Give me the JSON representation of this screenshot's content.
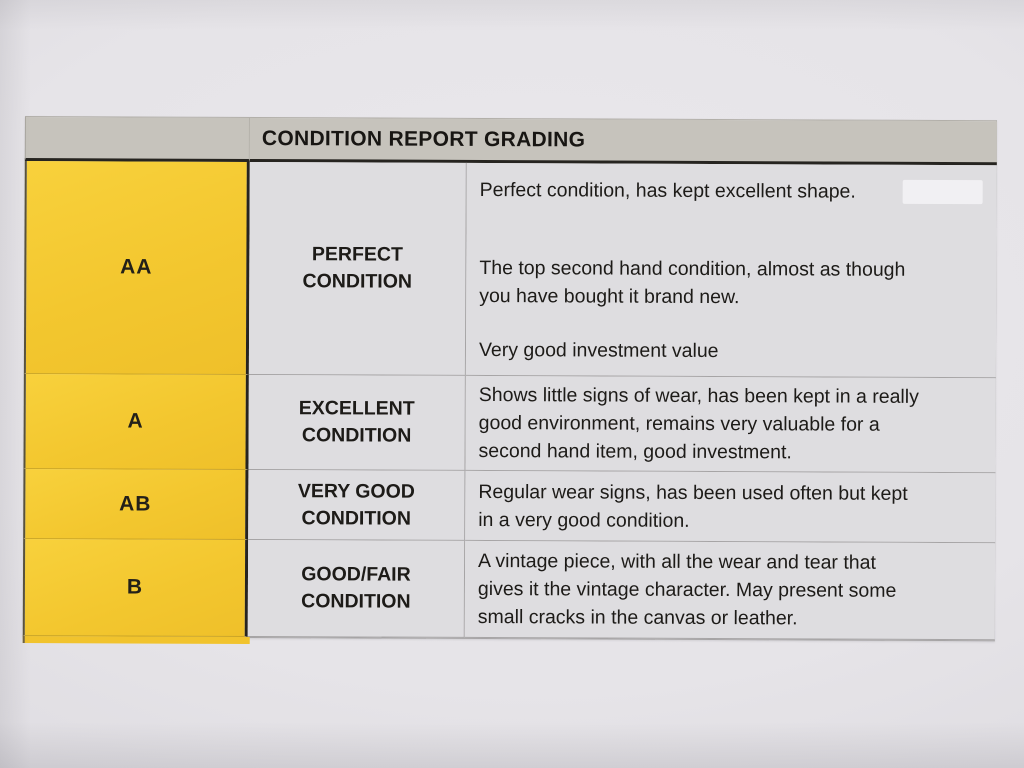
{
  "table": {
    "header": {
      "title": "CONDITION REPORT GRADING"
    },
    "colors": {
      "grade_cell_yellow": "#f3c72f",
      "header_bar_gray": "#c6c3bc",
      "cell_background": "#dedde0",
      "text": "#1d1b18",
      "heavy_border": "#262420"
    },
    "rows": [
      {
        "grade": "AA",
        "name": "PERFECT\nCONDITION",
        "paragraphs": [
          "Perfect condition, has kept excellent shape.",
          "The top second hand condition, almost as though\nyou have bought it brand new.",
          "Very good investment value"
        ]
      },
      {
        "grade": "A",
        "name": "EXCELLENT\nCONDITION",
        "paragraphs": [
          "Shows little signs of wear, has been kept in a really\ngood environment, remains very valuable for a\nsecond hand item, good investment."
        ]
      },
      {
        "grade": "AB",
        "name": "VERY GOOD\nCONDITION",
        "paragraphs": [
          "Regular wear signs, has been used often but kept\nin a very good condition."
        ]
      },
      {
        "grade": "B",
        "name": "GOOD/FAIR\nCONDITION",
        "paragraphs": [
          "A vintage piece, with all the wear and tear that\ngives it the vintage character. May present some\nsmall cracks in the canvas or leather."
        ]
      }
    ]
  }
}
